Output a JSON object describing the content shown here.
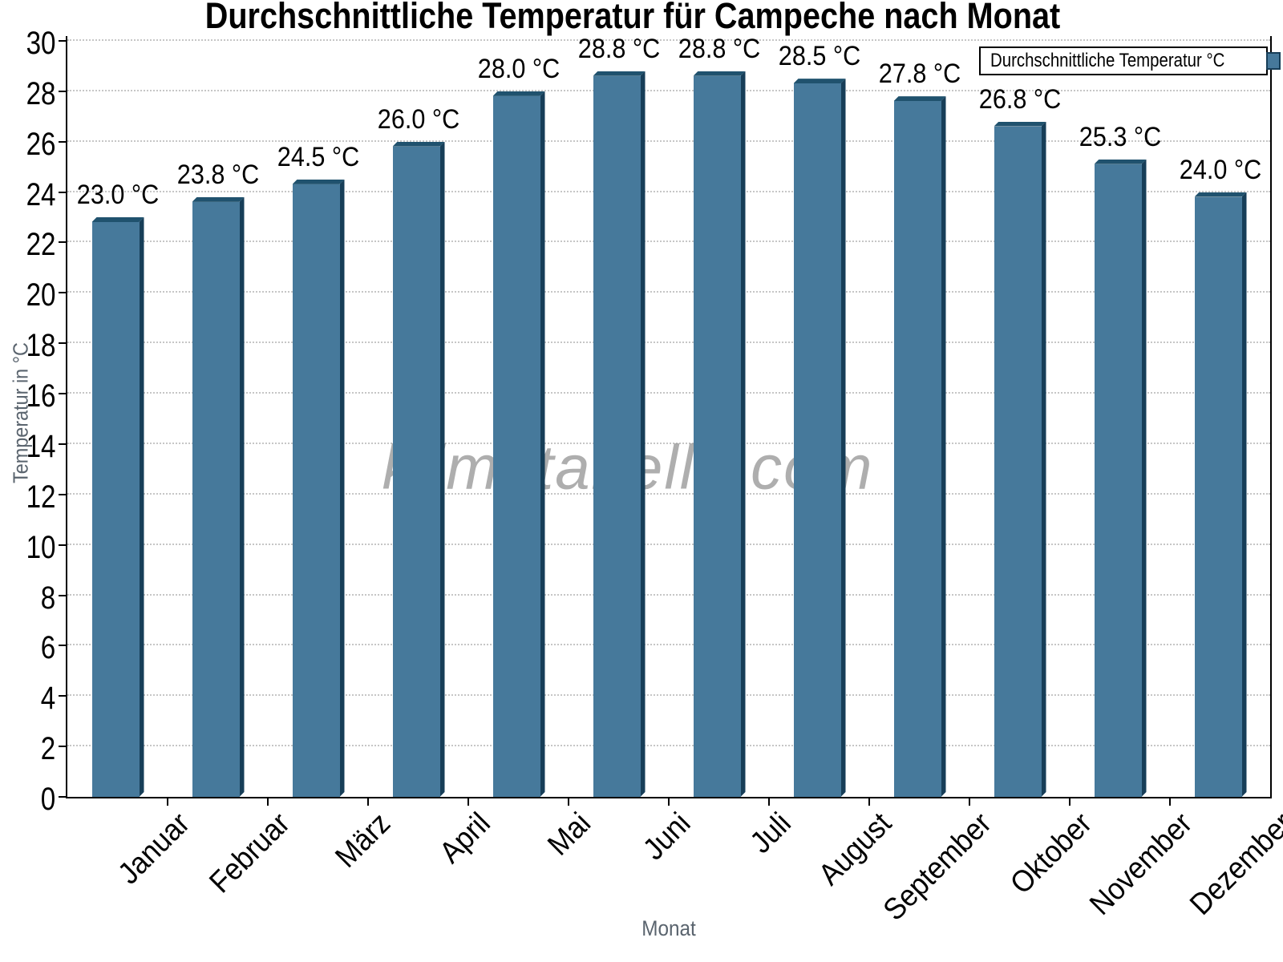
{
  "chart_data": {
    "type": "bar",
    "title": "Durchschnittliche Temperatur für Campeche nach Monat",
    "xlabel": "Monat",
    "ylabel": "Temperatur in °C",
    "legend": "Durchschnittliche Temperatur °C",
    "legend_position": "top-right",
    "watermark": "klimatabelle.com",
    "categories": [
      "Januar",
      "Februar",
      "März",
      "April",
      "Mai",
      "Juni",
      "Juli",
      "August",
      "September",
      "Oktober",
      "November",
      "Dezember"
    ],
    "values": [
      23.0,
      23.8,
      24.5,
      26.0,
      28.0,
      28.8,
      28.8,
      28.5,
      27.8,
      26.8,
      25.3,
      24.0
    ],
    "value_labels": [
      "23.0 °C",
      "23.8 °C",
      "24.5 °C",
      "26.0 °C",
      "28.0 °C",
      "28.8 °C",
      "28.8 °C",
      "28.5 °C",
      "27.8 °C",
      "26.8 °C",
      "25.3 °C",
      "24.0 °C"
    ],
    "ylim": [
      0,
      30
    ],
    "ytick_step": 2,
    "y_tick_labels": [
      "0",
      "2",
      "4",
      "6",
      "8",
      "10",
      "12",
      "14",
      "16",
      "18",
      "20",
      "22",
      "24",
      "26",
      "28",
      "30"
    ],
    "grid": true,
    "colors": {
      "bar_front": "#46799B",
      "bar_top": "#20526E",
      "bar_right": "#173E58",
      "grid": "#C6C6C6",
      "axis": "#000000",
      "muted_text": "#5A646E",
      "watermark": "#9A9A9A"
    }
  }
}
